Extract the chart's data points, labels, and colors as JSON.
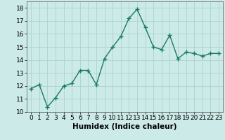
{
  "x": [
    0,
    1,
    2,
    3,
    4,
    5,
    6,
    7,
    8,
    9,
    10,
    11,
    12,
    13,
    14,
    15,
    16,
    17,
    18,
    19,
    20,
    21,
    22,
    23
  ],
  "y": [
    11.8,
    12.1,
    10.4,
    11.1,
    12.0,
    12.2,
    13.2,
    13.2,
    12.1,
    14.1,
    15.0,
    15.8,
    17.2,
    17.9,
    16.5,
    15.0,
    14.8,
    15.9,
    14.1,
    14.6,
    14.5,
    14.3,
    14.5,
    14.5
  ],
  "line_color": "#1a7a5e",
  "marker": "+",
  "marker_size": 4,
  "bg_color": "#cceae7",
  "grid_color": "#aad4d0",
  "xlabel": "Humidex (Indice chaleur)",
  "xlim": [
    -0.5,
    23.5
  ],
  "ylim": [
    10,
    18.5
  ],
  "yticks": [
    10,
    11,
    12,
    13,
    14,
    15,
    16,
    17,
    18
  ],
  "xticks": [
    0,
    1,
    2,
    3,
    4,
    5,
    6,
    7,
    8,
    9,
    10,
    11,
    12,
    13,
    14,
    15,
    16,
    17,
    18,
    19,
    20,
    21,
    22,
    23
  ],
  "xlabel_fontsize": 7.5,
  "tick_fontsize": 6.5,
  "linewidth": 1.0,
  "markeredgewidth": 1.0
}
